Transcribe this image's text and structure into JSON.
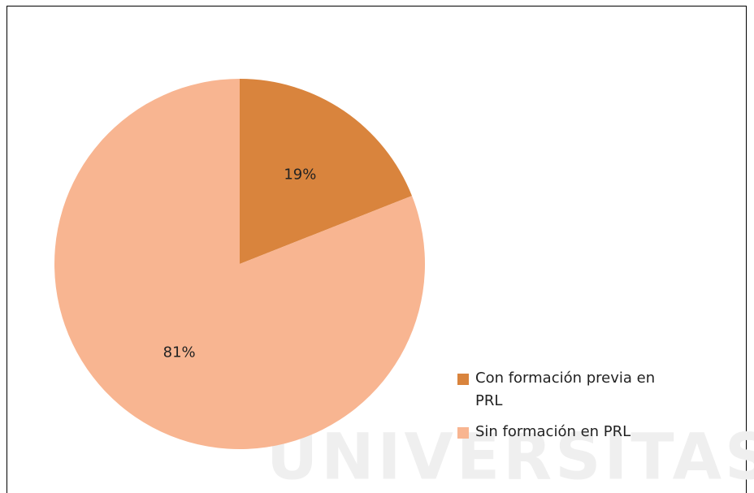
{
  "chart_data": {
    "type": "pie",
    "categories": [
      "Con formación previa en PRL",
      "Sin formación en PRL"
    ],
    "values": [
      19,
      81
    ],
    "value_labels": [
      "19%",
      "81%"
    ],
    "colors": [
      "#D9843D",
      "#F8B591"
    ],
    "legend": "lower right",
    "watermark": "UNIVERSITAS"
  }
}
